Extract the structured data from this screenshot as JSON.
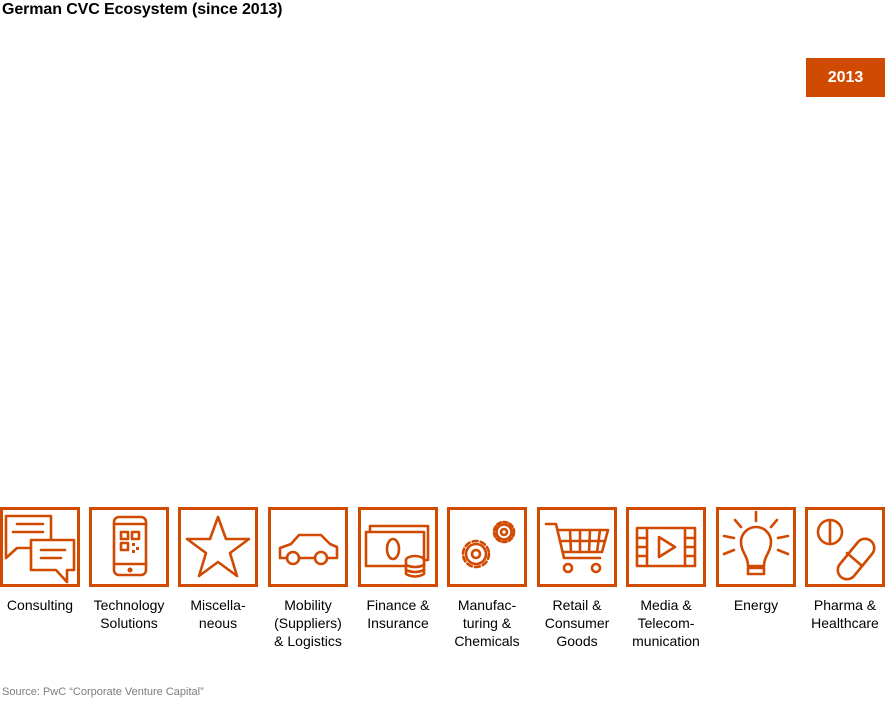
{
  "title": "German CVC Ecosystem (since 2013)",
  "year_badge": "2013",
  "accent_color": "#d04a02",
  "categories": [
    {
      "icon": "speech-bubbles-icon",
      "label": "Consulting"
    },
    {
      "icon": "smartphone-qr-icon",
      "label": "Technology\nSolutions"
    },
    {
      "icon": "star-icon",
      "label": "Miscella-\nneous"
    },
    {
      "icon": "car-icon",
      "label": "Mobility\n(Suppliers)\n& Logistics"
    },
    {
      "icon": "banknote-coins-icon",
      "label": "Finance &\nInsurance"
    },
    {
      "icon": "gears-icon",
      "label": "Manufac-\nturing &\nChemicals"
    },
    {
      "icon": "shopping-cart-icon",
      "label": "Retail &\nConsumer\nGoods"
    },
    {
      "icon": "video-player-icon",
      "label": "Media &\nTelecom-\nmunication"
    },
    {
      "icon": "light-bulb-icon",
      "label": "Energy"
    },
    {
      "icon": "pills-icon",
      "label": "Pharma &\nHealthcare"
    }
  ],
  "source": "Source: PwC “Corporate Venture Capital”"
}
